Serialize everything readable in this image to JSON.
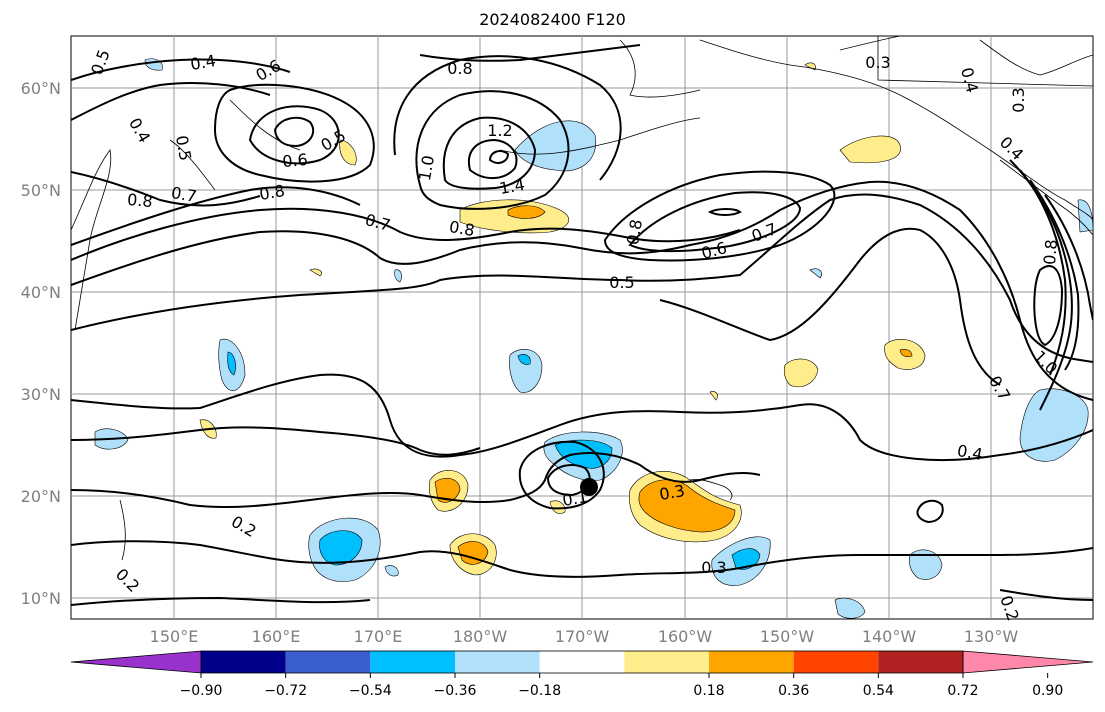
{
  "title": "2024082400 F120",
  "map": {
    "lat_labels": [
      "60°N",
      "50°N",
      "40°N",
      "30°N",
      "20°N",
      "10°N"
    ],
    "lon_labels": [
      "150°E",
      "160°E",
      "170°E",
      "180°W",
      "170°W",
      "160°W",
      "150°W",
      "140°W",
      "130°W"
    ],
    "contour_labels": [
      "0.5",
      "0.4",
      "0.6",
      "0.8",
      "0.3",
      "0.3",
      "0.4",
      "0.5",
      "0.4",
      "0.6",
      "0.5",
      "1.2",
      "1.0",
      "1.4",
      "0.8",
      "0.8",
      "0.7",
      "0.8",
      "0.7",
      "0.8",
      "0.6",
      "0.7",
      "0.5",
      "0.8",
      "0.4",
      "0.7",
      "1.0",
      "0.4",
      "0.2",
      "0.2",
      "0.1",
      "0.3",
      "0.3",
      "0.2"
    ]
  },
  "colorbar": {
    "ticks": [
      "−0.90",
      "−0.72",
      "−0.54",
      "−0.36",
      "−0.18",
      "0.18",
      "0.36",
      "0.54",
      "0.72",
      "0.90"
    ],
    "colors": [
      "#9932cc",
      "#00008b",
      "#3a5fcd",
      "#00bfff",
      "#b0e0fa",
      "#ffffff",
      "#ffec8b",
      "#ffa500",
      "#ff4500",
      "#b22222",
      "#ff88aa"
    ]
  }
}
